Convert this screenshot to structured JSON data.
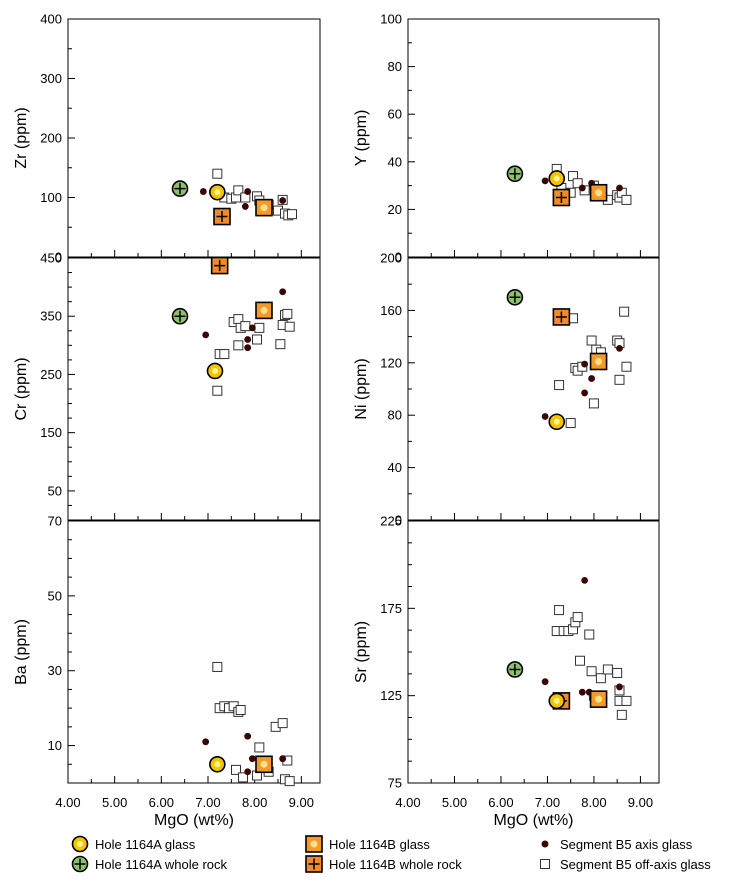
{
  "colors": {
    "glass_a_fill": "#f5c400",
    "glass_a_center": "#fff58a",
    "rock_a_fill": "#8dc06a",
    "glass_b_fill": "#f39a2b",
    "glass_b_center": "#fde08a",
    "rock_b_fill": "#f08a2a",
    "axis_point": "#3a0505",
    "open_square_stroke": "#333333"
  },
  "legend": {
    "hole_1164a_glass": "Hole 1164A glass",
    "hole_1164a_rock": "Hole 1164A whole rock",
    "hole_1164b_glass": "Hole 1164B glass",
    "hole_1164b_rock": "Hole 1164B whole rock",
    "seg_axis": "Segment B5 axis glass",
    "seg_off_axis": "Segment B5 off-axis glass"
  },
  "chart_data": [
    {
      "type": "scatter",
      "id": "zr",
      "ylabel": "Zr (ppm)",
      "xlabel": "",
      "xlim": [
        4,
        9.4
      ],
      "ylim": [
        0,
        400
      ],
      "xticks": [
        "4.00",
        "5.00",
        "6.00",
        "7.00",
        "8.00",
        "9.00"
      ],
      "xtick_labels_shown": false,
      "yticks": [
        0,
        100,
        200,
        300,
        400
      ],
      "yminor": 50,
      "series": [
        {
          "name": "Hole 1164A glass",
          "points": [
            [
              7.2,
              109
            ]
          ]
        },
        {
          "name": "Hole 1164A whole rock",
          "points": [
            [
              6.4,
              115
            ]
          ]
        },
        {
          "name": "Hole 1164B glass",
          "points": [
            [
              8.2,
              83
            ]
          ]
        },
        {
          "name": "Hole 1164B whole rock",
          "points": [
            [
              7.3,
              68
            ]
          ]
        },
        {
          "name": "Segment B5 axis glass",
          "points": [
            [
              6.9,
              110
            ],
            [
              7.85,
              110
            ],
            [
              7.8,
              85
            ],
            [
              8.15,
              90
            ],
            [
              8.6,
              95
            ]
          ]
        },
        {
          "name": "Segment B5 off-axis glass",
          "points": [
            [
              7.2,
              140
            ],
            [
              7.35,
              100
            ],
            [
              7.5,
              98
            ],
            [
              7.6,
              100
            ],
            [
              7.65,
              112
            ],
            [
              7.8,
              100
            ],
            [
              8.05,
              102
            ],
            [
              8.1,
              95
            ],
            [
              8.3,
              88
            ],
            [
              8.5,
              78
            ],
            [
              8.6,
              96
            ],
            [
              8.65,
              73
            ],
            [
              8.72,
              70
            ],
            [
              8.8,
              72
            ]
          ]
        }
      ]
    },
    {
      "type": "scatter",
      "id": "y",
      "ylabel": "Y (ppm)",
      "xlabel": "",
      "xlim": [
        4,
        9.4
      ],
      "ylim": [
        0,
        100
      ],
      "xticks": [
        "4.00",
        "5.00",
        "6.00",
        "7.00",
        "8.00",
        "9.00"
      ],
      "xtick_labels_shown": false,
      "yticks": [
        0,
        20,
        40,
        60,
        80,
        100
      ],
      "yminor": 10,
      "series": [
        {
          "name": "Hole 1164A glass",
          "points": [
            [
              7.2,
              33
            ]
          ]
        },
        {
          "name": "Hole 1164A whole rock",
          "points": [
            [
              6.3,
              35
            ]
          ]
        },
        {
          "name": "Hole 1164B glass",
          "points": [
            [
              8.1,
              27
            ]
          ]
        },
        {
          "name": "Hole 1164B whole rock",
          "points": [
            [
              7.3,
              25
            ]
          ]
        },
        {
          "name": "Segment B5 axis glass",
          "points": [
            [
              6.95,
              32
            ],
            [
              7.75,
              29
            ],
            [
              7.95,
              31
            ],
            [
              8.55,
              29
            ]
          ]
        },
        {
          "name": "Segment B5 off-axis glass",
          "points": [
            [
              7.2,
              37
            ],
            [
              7.3,
              29
            ],
            [
              7.5,
              27
            ],
            [
              7.55,
              34
            ],
            [
              7.65,
              31
            ],
            [
              7.8,
              28
            ],
            [
              8.0,
              30
            ],
            [
              8.3,
              24
            ],
            [
              8.5,
              26
            ],
            [
              8.55,
              25
            ],
            [
              8.6,
              27
            ],
            [
              8.7,
              24
            ]
          ]
        }
      ]
    },
    {
      "type": "scatter",
      "id": "cr",
      "ylabel": "Cr (ppm)",
      "xlabel": "",
      "xlim": [
        4,
        9.4
      ],
      "ylim": [
        0,
        450
      ],
      "xticks": [
        "4.00",
        "5.00",
        "6.00",
        "7.00",
        "8.00",
        "9.00"
      ],
      "xtick_labels_shown": false,
      "yticks": [
        50,
        150,
        250,
        350,
        450
      ],
      "yminor": 25,
      "series": [
        {
          "name": "Hole 1164A glass",
          "points": [
            [
              7.15,
              256
            ]
          ]
        },
        {
          "name": "Hole 1164A whole rock",
          "points": [
            [
              6.4,
              350
            ]
          ]
        },
        {
          "name": "Hole 1164B glass",
          "points": [
            [
              8.2,
              360
            ]
          ]
        },
        {
          "name": "Hole 1164B whole rock",
          "points": [
            [
              7.25,
              437
            ]
          ]
        },
        {
          "name": "Segment B5 axis glass",
          "points": [
            [
              6.95,
              318
            ],
            [
              7.85,
              310
            ],
            [
              7.85,
              296
            ],
            [
              7.95,
              330
            ],
            [
              8.6,
              392
            ]
          ]
        },
        {
          "name": "Segment B5 off-axis glass",
          "points": [
            [
              7.2,
              222
            ],
            [
              7.25,
              285
            ],
            [
              7.35,
              285
            ],
            [
              7.55,
              340
            ],
            [
              7.65,
              345
            ],
            [
              7.7,
              330
            ],
            [
              7.65,
              300
            ],
            [
              7.8,
              333
            ],
            [
              8.05,
              310
            ],
            [
              8.1,
              330
            ],
            [
              8.55,
              302
            ],
            [
              8.6,
              335
            ],
            [
              8.65,
              352
            ],
            [
              8.7,
              354
            ],
            [
              8.75,
              332
            ]
          ]
        }
      ]
    },
    {
      "type": "scatter",
      "id": "ni",
      "ylabel": "Ni (ppm)",
      "xlabel": "",
      "xlim": [
        4,
        9.4
      ],
      "ylim": [
        0,
        200
      ],
      "xticks": [
        "4.00",
        "5.00",
        "6.00",
        "7.00",
        "8.00",
        "9.00"
      ],
      "xtick_labels_shown": false,
      "yticks": [
        0,
        40,
        80,
        120,
        160,
        200
      ],
      "yminor": 20,
      "series": [
        {
          "name": "Hole 1164A glass",
          "points": [
            [
              7.2,
              75
            ]
          ]
        },
        {
          "name": "Hole 1164A whole rock",
          "points": [
            [
              6.3,
              170
            ]
          ]
        },
        {
          "name": "Hole 1164B glass",
          "points": [
            [
              8.1,
              121
            ]
          ]
        },
        {
          "name": "Hole 1164B whole rock",
          "points": [
            [
              7.3,
              155
            ]
          ]
        },
        {
          "name": "Segment B5 axis glass",
          "points": [
            [
              6.95,
              79
            ],
            [
              7.8,
              119
            ],
            [
              7.8,
              97
            ],
            [
              7.95,
              108
            ],
            [
              8.55,
              131
            ]
          ]
        },
        {
          "name": "Segment B5 off-axis glass",
          "points": [
            [
              7.25,
              103
            ],
            [
              7.5,
              74
            ],
            [
              7.55,
              154
            ],
            [
              7.6,
              116
            ],
            [
              7.65,
              114
            ],
            [
              7.75,
              117
            ],
            [
              7.95,
              137
            ],
            [
              8.0,
              89
            ],
            [
              8.05,
              130
            ],
            [
              8.15,
              128
            ],
            [
              8.5,
              137
            ],
            [
              8.55,
              135
            ],
            [
              8.55,
              107
            ],
            [
              8.65,
              159
            ],
            [
              8.7,
              117
            ]
          ]
        }
      ]
    },
    {
      "type": "scatter",
      "id": "ba",
      "ylabel": "Ba (ppm)",
      "xlabel": "MgO (wt%)",
      "xlim": [
        4,
        9.4
      ],
      "ylim": [
        0,
        70
      ],
      "xticks": [
        "4.00",
        "5.00",
        "6.00",
        "7.00",
        "8.00",
        "9.00"
      ],
      "xtick_labels_shown": true,
      "yticks": [
        10,
        30,
        50,
        70
      ],
      "yminor": 5,
      "series": [
        {
          "name": "Hole 1164A glass",
          "points": [
            [
              7.2,
              5
            ]
          ]
        },
        {
          "name": "Hole 1164A whole rock",
          "points": []
        },
        {
          "name": "Hole 1164B glass",
          "points": [
            [
              8.2,
              5
            ]
          ]
        },
        {
          "name": "Hole 1164B whole rock",
          "points": []
        },
        {
          "name": "Segment B5 axis glass",
          "points": [
            [
              6.95,
              11
            ],
            [
              7.85,
              12.5
            ],
            [
              7.85,
              3
            ],
            [
              7.95,
              6.5
            ],
            [
              8.6,
              6.5
            ]
          ]
        },
        {
          "name": "Segment B5 off-axis glass",
          "points": [
            [
              7.2,
              31
            ],
            [
              7.25,
              20
            ],
            [
              7.35,
              20.5
            ],
            [
              7.45,
              20
            ],
            [
              7.55,
              20.5
            ],
            [
              7.6,
              3.5
            ],
            [
              7.65,
              19
            ],
            [
              7.7,
              19.5
            ],
            [
              7.75,
              1.5
            ],
            [
              8.05,
              2
            ],
            [
              8.1,
              9.5
            ],
            [
              8.3,
              3
            ],
            [
              8.45,
              15
            ],
            [
              8.6,
              16
            ],
            [
              8.65,
              1
            ],
            [
              8.7,
              6
            ],
            [
              8.75,
              0.5
            ]
          ]
        }
      ]
    },
    {
      "type": "scatter",
      "id": "sr",
      "ylabel": "Sr (ppm)",
      "xlabel": "MgO (wt%)",
      "xlim": [
        4,
        9.4
      ],
      "ylim": [
        75,
        225
      ],
      "xticks": [
        "4.00",
        "5.00",
        "6.00",
        "7.00",
        "8.00",
        "9.00"
      ],
      "xtick_labels_shown": true,
      "yticks": [
        75,
        125,
        175,
        225
      ],
      "yminor": 12.5,
      "series": [
        {
          "name": "Hole 1164A glass",
          "points": [
            [
              7.2,
              122
            ]
          ]
        },
        {
          "name": "Hole 1164A whole rock",
          "points": [
            [
              6.3,
              140
            ]
          ]
        },
        {
          "name": "Hole 1164B glass",
          "points": [
            [
              8.1,
              123
            ]
          ]
        },
        {
          "name": "Hole 1164B whole rock",
          "points": [
            [
              7.3,
              122
            ]
          ]
        },
        {
          "name": "Segment B5 axis glass",
          "points": [
            [
              6.95,
              133
            ],
            [
              7.75,
              127
            ],
            [
              7.8,
              191
            ],
            [
              7.9,
              127
            ],
            [
              8.55,
              130
            ]
          ]
        },
        {
          "name": "Segment B5 off-axis glass",
          "points": [
            [
              7.2,
              162
            ],
            [
              7.25,
              174
            ],
            [
              7.35,
              162
            ],
            [
              7.45,
              162
            ],
            [
              7.55,
              163
            ],
            [
              7.6,
              167
            ],
            [
              7.65,
              170
            ],
            [
              7.7,
              145
            ],
            [
              7.9,
              160
            ],
            [
              7.95,
              139
            ],
            [
              8.0,
              125
            ],
            [
              8.15,
              135
            ],
            [
              8.3,
              140
            ],
            [
              8.5,
              138
            ],
            [
              8.55,
              122
            ],
            [
              8.6,
              114
            ],
            [
              8.7,
              122
            ],
            [
              8.55,
              128
            ]
          ]
        }
      ]
    }
  ]
}
